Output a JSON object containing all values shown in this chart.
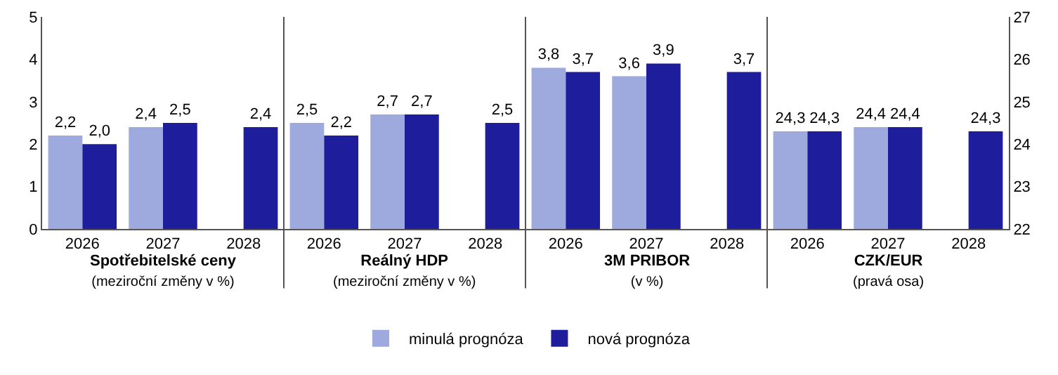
{
  "chart_data": {
    "type": "bar",
    "categories": [
      "2026",
      "2027",
      "2028",
      "2026",
      "2027",
      "2028",
      "2026",
      "2027",
      "2028",
      "2026",
      "2027",
      "2028"
    ],
    "series": [
      {
        "name": "minulá prognóza",
        "color": "#9ea9de",
        "values": [
          2.2,
          2.4,
          null,
          2.5,
          2.7,
          null,
          3.8,
          3.6,
          null,
          null,
          null,
          null
        ],
        "value_labels": [
          "2,2",
          "2,4",
          null,
          "2,5",
          "2,7",
          null,
          "3,8",
          "3,6",
          null,
          null,
          null,
          null
        ]
      },
      {
        "name": "nová prognóza",
        "color": "#1e1e9c",
        "values": [
          2.0,
          2.5,
          2.4,
          2.2,
          2.7,
          2.5,
          3.7,
          3.9,
          3.7,
          null,
          null,
          null
        ],
        "value_labels": [
          "2,0",
          "2,5",
          "2,4",
          "2,2",
          "2,7",
          "2,5",
          "3,7",
          "3,9",
          "3,7",
          null,
          null,
          null
        ]
      },
      {
        "color": "#9ea9de",
        "axis": "y2",
        "values": [
          null,
          null,
          null,
          null,
          null,
          null,
          null,
          null,
          null,
          24.3,
          24.4,
          null
        ],
        "value_labels": [
          null,
          null,
          null,
          null,
          null,
          null,
          null,
          null,
          null,
          "24,3",
          "24,4",
          null
        ]
      },
      {
        "color": "#1e1e9c",
        "axis": "y2",
        "values": [
          null,
          null,
          null,
          null,
          null,
          null,
          null,
          null,
          null,
          24.3,
          24.4,
          24.3
        ],
        "value_labels": [
          null,
          null,
          null,
          null,
          null,
          null,
          null,
          null,
          null,
          "24,3",
          "24,4",
          "24,3"
        ]
      }
    ],
    "annotations": [
      "Spotřebitelské ceny\n(meziroční změny v %)",
      "Reálný HDP\n(meziroční změny v %)",
      "3M PRIBOR\n(v %)",
      "CZK/EUR\n(pravá osa)"
    ],
    "ylim": [
      0,
      5
    ],
    "yticks": [
      0,
      1,
      2,
      3,
      4,
      5
    ],
    "y2lim": [
      22,
      27
    ],
    "y2ticks": [
      22,
      23,
      24,
      25,
      26,
      27
    ],
    "grid": false,
    "legend": "bottom"
  }
}
